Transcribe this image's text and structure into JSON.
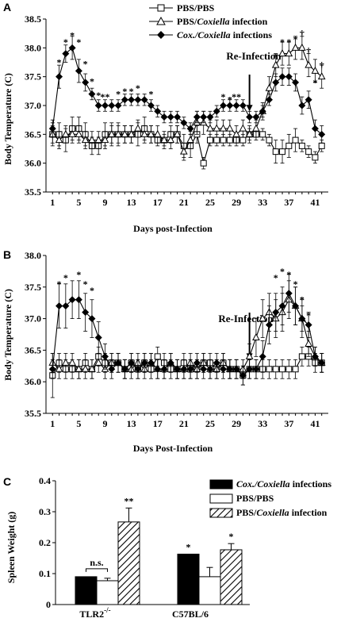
{
  "chart_data": [
    {
      "panel": "A",
      "type": "line",
      "ylabel": "Body Temperature (C)",
      "xlabel": "Days post-Infection",
      "ylim": [
        35.5,
        38.5
      ],
      "yticks": [
        "35.5",
        "36.0",
        "36.5",
        "37.0",
        "37.5",
        "38.0",
        "38.5"
      ],
      "xlim": [
        0,
        43
      ],
      "xticks": [
        1,
        5,
        9,
        13,
        17,
        21,
        25,
        29,
        33,
        37,
        41
      ],
      "annotation": "Re-Infection",
      "annotation_day": 31,
      "legend": [
        "PBS/PBS",
        "PBS/",
        "Coxiella",
        " infection",
        "Cox./",
        "Coxiella",
        " infections"
      ],
      "series": [
        {
          "name": "PBS/PBS",
          "marker": "square",
          "x": [
            1,
            2,
            3,
            4,
            5,
            6,
            7,
            8,
            9,
            10,
            11,
            12,
            13,
            14,
            15,
            16,
            17,
            18,
            19,
            20,
            21,
            22,
            23,
            24,
            25,
            26,
            27,
            28,
            29,
            30,
            31,
            32,
            33,
            34,
            35,
            36,
            37,
            38,
            39,
            40,
            41,
            42
          ],
          "y": [
            36.5,
            36.5,
            36.4,
            36.6,
            36.6,
            36.5,
            36.3,
            36.3,
            36.5,
            36.5,
            36.5,
            36.5,
            36.5,
            36.5,
            36.6,
            36.5,
            36.4,
            36.4,
            36.5,
            36.5,
            36.3,
            36.3,
            36.5,
            36.0,
            36.4,
            36.4,
            36.4,
            36.4,
            36.4,
            36.4,
            36.5,
            36.5,
            36.5,
            36.4,
            36.2,
            36.2,
            36.3,
            36.4,
            36.3,
            36.2,
            36.1,
            36.3
          ],
          "err": [
            0.2,
            0.2,
            0.2,
            0.2,
            0.2,
            0.2,
            0.15,
            0.15,
            0.2,
            0.2,
            0.2,
            0.15,
            0.15,
            0.2,
            0.2,
            0.15,
            0.1,
            0.1,
            0.15,
            0.15,
            0.2,
            0.2,
            0.15,
            0.1,
            0.1,
            0.1,
            0.1,
            0.1,
            0.1,
            0.1,
            0.1,
            0.1,
            0.1,
            0.1,
            0.2,
            0.2,
            0.2,
            0.2,
            0.1,
            0.1,
            0.1,
            0.1
          ]
        },
        {
          "name": "PBS/Coxiella infection",
          "marker": "triangle",
          "x": [
            1,
            2,
            3,
            4,
            5,
            6,
            7,
            8,
            9,
            10,
            11,
            12,
            13,
            14,
            15,
            16,
            17,
            18,
            19,
            20,
            21,
            22,
            23,
            24,
            25,
            26,
            27,
            28,
            29,
            30,
            31,
            32,
            33,
            34,
            35,
            36,
            37,
            38,
            39,
            40,
            41,
            42
          ],
          "y": [
            36.5,
            36.4,
            36.5,
            36.5,
            36.5,
            36.4,
            36.4,
            36.4,
            36.4,
            36.5,
            36.5,
            36.5,
            36.5,
            36.6,
            36.5,
            36.5,
            36.5,
            36.4,
            36.4,
            36.5,
            36.2,
            36.4,
            36.7,
            36.7,
            36.6,
            36.6,
            36.6,
            36.6,
            36.5,
            36.6,
            36.5,
            36.6,
            36.9,
            37.3,
            37.7,
            37.9,
            37.9,
            38.0,
            38.0,
            37.7,
            37.6,
            37.5
          ],
          "err": [
            0.15,
            0.15,
            0.15,
            0.15,
            0.15,
            0.15,
            0.15,
            0.15,
            0.15,
            0.15,
            0.15,
            0.15,
            0.15,
            0.15,
            0.15,
            0.15,
            0.15,
            0.15,
            0.15,
            0.15,
            0.15,
            0.15,
            0.2,
            0.2,
            0.15,
            0.15,
            0.15,
            0.15,
            0.15,
            0.15,
            0.15,
            0.15,
            0.15,
            0.2,
            0.2,
            0.2,
            0.2,
            0.2,
            0.2,
            0.2,
            0.2,
            0.2
          ]
        },
        {
          "name": "Cox./Coxiella infections",
          "marker": "diamond",
          "x": [
            1,
            2,
            3,
            4,
            5,
            6,
            7,
            8,
            9,
            10,
            11,
            12,
            13,
            14,
            15,
            16,
            17,
            18,
            19,
            20,
            21,
            22,
            23,
            24,
            25,
            26,
            27,
            28,
            29,
            30,
            31,
            32,
            33,
            34,
            35,
            36,
            37,
            38,
            39,
            40,
            41,
            42
          ],
          "y": [
            36.6,
            37.5,
            37.9,
            38.0,
            37.6,
            37.4,
            37.2,
            37.0,
            37.0,
            37.0,
            37.0,
            37.1,
            37.1,
            37.1,
            37.1,
            37.0,
            36.9,
            36.8,
            36.8,
            36.8,
            36.7,
            36.6,
            36.8,
            36.8,
            36.8,
            36.9,
            37.0,
            37.0,
            37.0,
            37.0,
            36.8,
            36.8,
            36.9,
            37.1,
            37.4,
            37.5,
            37.5,
            37.4,
            37.0,
            37.1,
            36.6,
            36.5
          ],
          "err": [
            0.15,
            0.2,
            0.15,
            0.2,
            0.2,
            0.15,
            0.1,
            0.1,
            0.1,
            0.1,
            0.1,
            0.1,
            0.1,
            0.1,
            0.1,
            0.1,
            0.1,
            0.1,
            0.1,
            0.1,
            0.1,
            0.1,
            0.1,
            0.1,
            0.1,
            0.1,
            0.1,
            0.1,
            0.1,
            0.1,
            0.1,
            0.1,
            0.1,
            0.1,
            0.15,
            0.15,
            0.15,
            0.15,
            0.15,
            0.15,
            0.15,
            0.15
          ]
        }
      ],
      "stars": [
        {
          "x": 2,
          "y": 37.75,
          "t": "*"
        },
        {
          "x": 3,
          "y": 38.1,
          "t": "*"
        },
        {
          "x": 4,
          "y": 38.22,
          "t": "*"
        },
        {
          "x": 5,
          "y": 38.1,
          "t": "*"
        },
        {
          "x": 6,
          "y": 37.72,
          "t": "*"
        },
        {
          "x": 7,
          "y": 37.42,
          "t": "*"
        },
        {
          "x": 8,
          "y": 37.18,
          "t": "*"
        },
        {
          "x": 9,
          "y": 37.15,
          "t": "**"
        },
        {
          "x": 11,
          "y": 37.2,
          "t": "*"
        },
        {
          "x": 12,
          "y": 37.25,
          "t": "*"
        },
        {
          "x": 13,
          "y": 37.25,
          "t": "*"
        },
        {
          "x": 14,
          "y": 37.3,
          "t": "*"
        },
        {
          "x": 16,
          "y": 37.2,
          "t": "*"
        },
        {
          "x": 27,
          "y": 37.15,
          "t": "*"
        },
        {
          "x": 28,
          "y": 37.1,
          "t": "*"
        },
        {
          "x": 29,
          "y": 37.15,
          "t": "**"
        },
        {
          "x": 35,
          "y": 37.85,
          "t": "*"
        },
        {
          "x": 36,
          "y": 38.1,
          "t": "*"
        },
        {
          "x": 37,
          "y": 38.1,
          "t": "*"
        },
        {
          "x": 38,
          "y": 38.15,
          "t": "*"
        },
        {
          "x": 39,
          "y": 38.25,
          "t": "†"
        },
        {
          "x": 40,
          "y": 37.95,
          "t": "†"
        },
        {
          "x": 41,
          "y": 37.4,
          "t": "*"
        },
        {
          "x": 42,
          "y": 37.7,
          "t": "†"
        }
      ]
    },
    {
      "panel": "B",
      "type": "line",
      "ylabel": "Body Temperature (C)",
      "xlabel": "Days Post-Infection",
      "ylim": [
        35.5,
        38.0
      ],
      "yticks": [
        "35.5",
        "36.0",
        "36.5",
        "37.0",
        "37.5",
        "38.0"
      ],
      "xlim": [
        0,
        43
      ],
      "xticks": [
        1,
        5,
        9,
        13,
        17,
        21,
        25,
        29,
        33,
        37,
        41
      ],
      "annotation": "Re-Infection",
      "annotation_day": 31,
      "series": [
        {
          "name": "PBS/PBS",
          "marker": "square",
          "x": [
            1,
            2,
            3,
            4,
            5,
            6,
            7,
            8,
            9,
            10,
            11,
            12,
            13,
            14,
            15,
            16,
            17,
            18,
            19,
            20,
            21,
            22,
            23,
            24,
            25,
            26,
            27,
            28,
            29,
            30,
            31,
            32,
            33,
            34,
            35,
            36,
            37,
            38,
            39,
            40,
            41,
            42
          ],
          "y": [
            36.1,
            36.3,
            36.2,
            36.2,
            36.2,
            36.3,
            36.2,
            36.4,
            36.3,
            36.3,
            36.3,
            36.2,
            36.3,
            36.2,
            36.3,
            36.2,
            36.4,
            36.3,
            36.2,
            36.2,
            36.3,
            36.2,
            36.2,
            36.3,
            36.3,
            36.2,
            36.3,
            36.2,
            36.2,
            36.1,
            36.2,
            36.2,
            36.2,
            36.2,
            36.2,
            36.2,
            36.2,
            36.2,
            36.4,
            36.4,
            36.3,
            36.3
          ],
          "err": [
            0.35,
            0.15,
            0.15,
            0.15,
            0.15,
            0.15,
            0.15,
            0.15,
            0.15,
            0.15,
            0.15,
            0.15,
            0.15,
            0.15,
            0.15,
            0.15,
            0.15,
            0.15,
            0.15,
            0.15,
            0.15,
            0.15,
            0.15,
            0.15,
            0.15,
            0.15,
            0.15,
            0.15,
            0.15,
            0.15,
            0.15,
            0.15,
            0.15,
            0.15,
            0.15,
            0.15,
            0.15,
            0.15,
            0.15,
            0.15,
            0.15,
            0.15
          ]
        },
        {
          "name": "PBS/Coxiella infection",
          "marker": "triangle",
          "x": [
            1,
            2,
            3,
            4,
            5,
            6,
            7,
            8,
            9,
            10,
            11,
            12,
            13,
            14,
            15,
            16,
            17,
            18,
            19,
            20,
            21,
            22,
            23,
            24,
            25,
            26,
            27,
            28,
            29,
            30,
            31,
            32,
            33,
            34,
            35,
            36,
            37,
            38,
            39,
            40,
            41,
            42
          ],
          "y": [
            36.3,
            36.2,
            36.3,
            36.3,
            36.2,
            36.2,
            36.2,
            36.3,
            36.2,
            36.3,
            36.3,
            36.2,
            36.2,
            36.3,
            36.2,
            36.3,
            36.2,
            36.2,
            36.3,
            36.2,
            36.2,
            36.3,
            36.2,
            36.3,
            36.2,
            36.2,
            36.3,
            36.2,
            36.2,
            36.2,
            36.4,
            36.7,
            37.0,
            37.1,
            37.0,
            37.1,
            37.3,
            37.2,
            37.0,
            36.6,
            36.4,
            36.3
          ],
          "err": [
            0.15,
            0.15,
            0.15,
            0.15,
            0.15,
            0.15,
            0.15,
            0.15,
            0.15,
            0.15,
            0.15,
            0.15,
            0.15,
            0.15,
            0.15,
            0.15,
            0.15,
            0.15,
            0.15,
            0.15,
            0.15,
            0.15,
            0.15,
            0.15,
            0.15,
            0.15,
            0.15,
            0.15,
            0.15,
            0.15,
            0.2,
            0.3,
            0.3,
            0.3,
            0.3,
            0.3,
            0.3,
            0.3,
            0.2,
            0.2,
            0.15,
            0.15
          ]
        },
        {
          "name": "Cox./Coxiella infections",
          "marker": "diamond",
          "x": [
            1,
            2,
            3,
            4,
            5,
            6,
            7,
            8,
            9,
            10,
            11,
            12,
            13,
            14,
            15,
            16,
            17,
            18,
            19,
            20,
            21,
            22,
            23,
            24,
            25,
            26,
            27,
            28,
            29,
            30,
            31,
            32,
            33,
            34,
            35,
            36,
            37,
            38,
            39,
            40,
            41,
            42
          ],
          "y": [
            36.2,
            37.2,
            37.2,
            37.3,
            37.3,
            37.1,
            37.0,
            36.7,
            36.4,
            36.2,
            36.3,
            36.2,
            36.3,
            36.2,
            36.3,
            36.3,
            36.2,
            36.2,
            36.3,
            36.2,
            36.2,
            36.2,
            36.3,
            36.2,
            36.2,
            36.3,
            36.2,
            36.2,
            36.2,
            36.1,
            36.2,
            36.2,
            36.4,
            36.9,
            37.1,
            37.2,
            37.4,
            37.2,
            37.0,
            36.9,
            36.4,
            36.3
          ],
          "err": [
            0.15,
            0.35,
            0.35,
            0.3,
            0.3,
            0.3,
            0.3,
            0.25,
            0.2,
            0.15,
            0.15,
            0.15,
            0.15,
            0.15,
            0.15,
            0.15,
            0.15,
            0.15,
            0.15,
            0.15,
            0.15,
            0.15,
            0.15,
            0.15,
            0.15,
            0.15,
            0.15,
            0.15,
            0.15,
            0.15,
            0.15,
            0.15,
            0.25,
            0.3,
            0.3,
            0.3,
            0.3,
            0.3,
            0.3,
            0.2,
            0.15,
            0.15
          ]
        }
      ],
      "stars": [
        {
          "x": 2,
          "y": 37.55,
          "t": "*"
        },
        {
          "x": 3,
          "y": 37.65,
          "t": "*"
        },
        {
          "x": 5,
          "y": 37.7,
          "t": "*"
        },
        {
          "x": 6,
          "y": 37.55,
          "t": "*"
        },
        {
          "x": 7,
          "y": 37.45,
          "t": "*"
        },
        {
          "x": 35,
          "y": 37.65,
          "t": "*"
        },
        {
          "x": 36,
          "y": 37.75,
          "t": "*"
        },
        {
          "x": 37,
          "y": 37.7,
          "t": "*"
        },
        {
          "x": 38,
          "y": 37.55,
          "t": "*"
        },
        {
          "x": 39,
          "y": 37.3,
          "t": "*"
        },
        {
          "x": 40,
          "y": 37.05,
          "t": "*"
        }
      ]
    },
    {
      "panel": "C",
      "type": "bar",
      "ylabel": "Spleen Weight (g)",
      "ylim": [
        0,
        0.4
      ],
      "yticks": [
        "0",
        "0.1",
        "0.2",
        "0.3",
        "0.4"
      ],
      "categories": [
        "TLR2",
        "C57BL/6"
      ],
      "category_superscript": [
        "-/-",
        ""
      ],
      "legend": [
        "Cox./",
        "Coxiella",
        " infections",
        "PBS/PBS",
        "PBS/",
        "Coxiella",
        " infection"
      ],
      "series": [
        {
          "name": "Cox./Coxiella infections",
          "fill": "black",
          "values": [
            0.09,
            0.163
          ],
          "err": [
            0.0,
            0.0
          ]
        },
        {
          "name": "PBS/PBS",
          "fill": "white",
          "values": [
            0.077,
            0.09
          ],
          "err": [
            0.008,
            0.03
          ]
        },
        {
          "name": "PBS/Coxiella infection",
          "fill": "hatch",
          "values": [
            0.267,
            0.177
          ],
          "err": [
            0.045,
            0.02
          ]
        }
      ],
      "bar_labels": [
        {
          "cat": 1,
          "series": 0,
          "t": "*"
        },
        {
          "cat": 0,
          "series": 2,
          "t": "**"
        },
        {
          "cat": 1,
          "series": 2,
          "t": "*"
        }
      ],
      "bracket_label": "n.s."
    }
  ],
  "panel_labels": [
    "A",
    "B",
    "C"
  ]
}
